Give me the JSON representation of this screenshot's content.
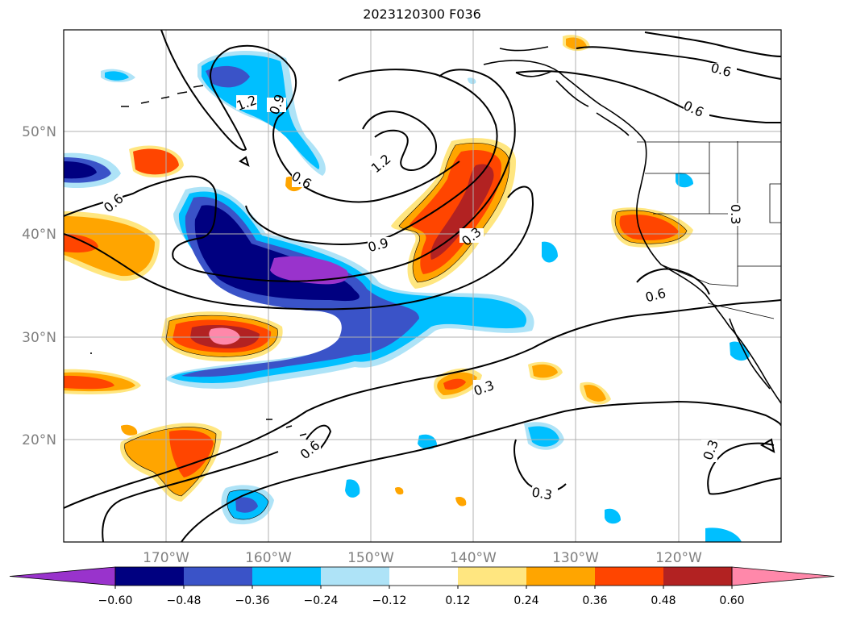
{
  "title": "2023120300 F036",
  "map": {
    "lon_ticks": [
      "170°W",
      "160°W",
      "150°W",
      "140°W",
      "130°W",
      "120°W"
    ],
    "lat_ticks": [
      "50°N",
      "40°N",
      "30°N",
      "20°N"
    ],
    "contour_labels": [
      "0.6",
      "1.2",
      "0.9",
      "0.6",
      "1.2",
      "0.9",
      "0.3",
      "0.3",
      "0.6",
      "0.6",
      "0.3",
      "0.6",
      "0.3",
      "0.3",
      "0.6"
    ]
  },
  "colorbar": {
    "ticks": [
      "−0.60",
      "−0.48",
      "−0.36",
      "−0.24",
      "−0.12",
      "0.12",
      "0.24",
      "0.36",
      "0.48",
      "0.60"
    ],
    "colors": [
      "#9933cc",
      "#000080",
      "#3a53c8",
      "#00bfff",
      "#aee3f7",
      "#ffffff",
      "#ffe680",
      "#ffa500",
      "#ff4500",
      "#b22222",
      "#ff88aa"
    ]
  }
}
